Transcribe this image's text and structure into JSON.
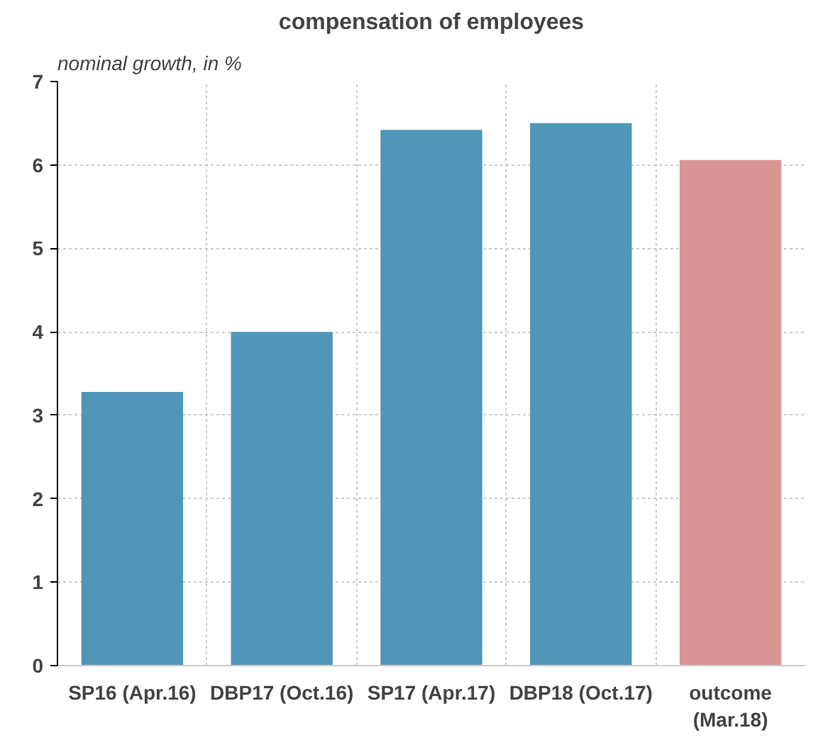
{
  "chart_data": {
    "type": "bar",
    "title": "compensation of employees",
    "ylabel": "nominal growth, in %",
    "categories": [
      "SP16 (Apr.16)",
      "DBP17 (Oct.16)",
      "SP17 (Apr.17)",
      "DBP18 (Oct.17)",
      "outcome\n(Mar.18)"
    ],
    "values": [
      3.28,
      4.0,
      6.42,
      6.5,
      6.06
    ],
    "colors": [
      "#4f97b8",
      "#4f97b8",
      "#4f97b8",
      "#4f97b8",
      "#d99594"
    ],
    "ylim": [
      0,
      7
    ],
    "yticks": [
      0,
      1,
      2,
      3,
      4,
      5,
      6,
      7
    ],
    "grid": true
  }
}
